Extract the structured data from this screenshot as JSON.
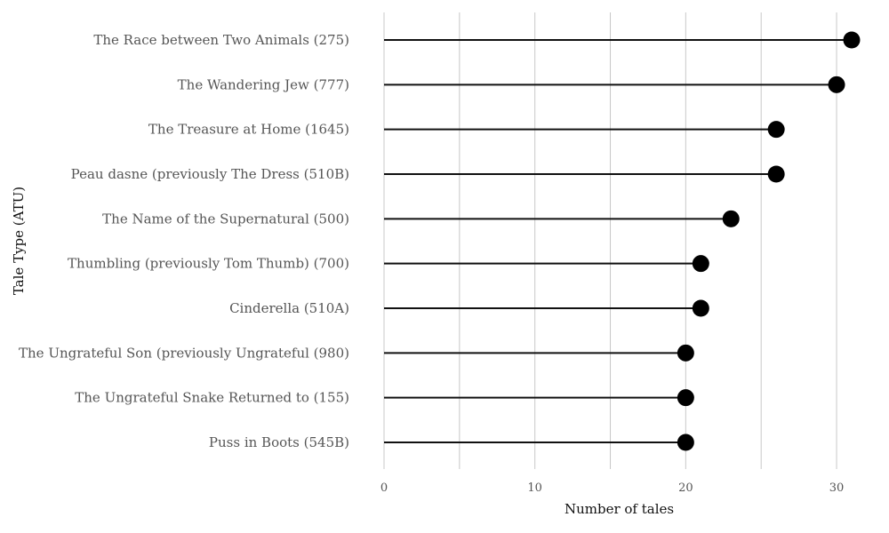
{
  "chart_data": {
    "type": "lollipop",
    "title": "",
    "xlabel": "Number of tales",
    "ylabel": "Tale Type (ATU)",
    "xlim": [
      0,
      31
    ],
    "xticks": [
      0,
      10,
      20,
      30
    ],
    "grid_step": 5,
    "grid": true,
    "legend": "none",
    "categories": [
      "The Race between Two Animals (275)",
      "The Wandering Jew (777)",
      "The Treasure at Home (1645)",
      "Peau dasne (previously The Dress (510B)",
      "The Name of the Supernatural (500)",
      "Thumbling (previously Tom Thumb) (700)",
      "Cinderella (510A)",
      "The Ungrateful Son (previously Ungrateful (980)",
      "The Ungrateful Snake Returned to (155)",
      "Puss in Boots (545B)"
    ],
    "values": [
      31,
      30,
      26,
      26,
      23,
      21,
      21,
      20,
      20,
      20
    ],
    "colors": {
      "marker": "#000000",
      "stem": "#111111",
      "grid": "#c8c8c8",
      "label": "#555555"
    }
  }
}
